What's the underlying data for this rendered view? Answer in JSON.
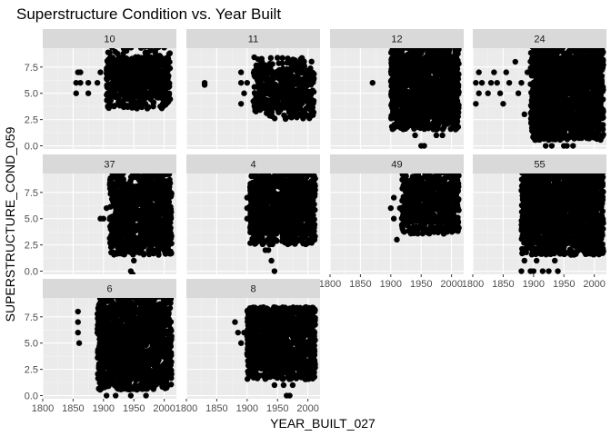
{
  "chart_data": {
    "type": "scatter",
    "title": "Superstructure Condition vs. Year Built",
    "xlabel": "YEAR_BUILT_027",
    "ylabel": "SUPERSTRUCTURE_COND_059",
    "xlim": [
      1800,
      2020
    ],
    "ylim": [
      -0.3,
      9.3
    ],
    "x_ticks": [
      1800,
      1850,
      1900,
      1950,
      2000
    ],
    "x_tick_labels": [
      "1800",
      "1850",
      "1900",
      "1950",
      "2000"
    ],
    "y_ticks": [
      0,
      2.5,
      5,
      7.5
    ],
    "y_tick_labels": [
      "0.0",
      "2.5",
      "5.0",
      "7.5"
    ],
    "grid": true,
    "legend": "none",
    "point_color": "#000000",
    "panel_background": "#ebebeb",
    "strip_background": "#d9d9d9",
    "panels": [
      {
        "label": "10",
        "points": [
          [
            1855,
            5
          ],
          [
            1855,
            6
          ],
          [
            1858,
            7
          ],
          [
            1862,
            6
          ],
          [
            1862,
            7
          ],
          [
            1875,
            5
          ],
          [
            1875,
            6
          ],
          [
            1890,
            6
          ],
          [
            1895,
            7
          ]
        ],
        "clouds": [
          {
            "x": [
              1905,
              2010
            ],
            "y": [
              4,
              8.7
            ],
            "density": 700
          }
        ]
      },
      {
        "label": "11",
        "points": [
          [
            1830,
            6
          ],
          [
            1830,
            5.8
          ],
          [
            1890,
            4
          ],
          [
            1890,
            6
          ],
          [
            1890,
            7
          ],
          [
            1895,
            5
          ],
          [
            1900,
            6
          ]
        ],
        "clouds": [
          {
            "x": [
              1910,
              2010
            ],
            "y": [
              3,
              8
            ],
            "density": 500
          }
        ]
      },
      {
        "label": "12",
        "points": [
          [
            1870,
            6
          ],
          [
            1905,
            6
          ],
          [
            1950,
            0
          ],
          [
            1955,
            0
          ],
          [
            1975,
            1
          ],
          [
            1985,
            1
          ],
          [
            1930,
            2
          ],
          [
            1940,
            1
          ]
        ],
        "clouds": [
          {
            "x": [
              1900,
              2012
            ],
            "y": [
              2,
              9
            ],
            "density": 1400
          }
        ]
      },
      {
        "label": "24",
        "points": [
          [
            1805,
            4
          ],
          [
            1805,
            6
          ],
          [
            1810,
            5
          ],
          [
            1810,
            7
          ],
          [
            1815,
            6
          ],
          [
            1825,
            5
          ],
          [
            1830,
            6
          ],
          [
            1835,
            7
          ],
          [
            1840,
            6
          ],
          [
            1845,
            5
          ],
          [
            1850,
            4
          ],
          [
            1855,
            7
          ],
          [
            1860,
            6
          ],
          [
            1870,
            8
          ],
          [
            1875,
            5
          ],
          [
            1880,
            6
          ],
          [
            1885,
            3
          ],
          [
            1890,
            7
          ],
          [
            1920,
            0
          ],
          [
            1925,
            1
          ],
          [
            1930,
            0
          ],
          [
            1950,
            0
          ],
          [
            1955,
            0
          ],
          [
            1965,
            0
          ],
          [
            1975,
            1
          ],
          [
            1985,
            1
          ]
        ],
        "clouds": [
          {
            "x": [
              1895,
              2015
            ],
            "y": [
              1,
              9
            ],
            "density": 1600
          }
        ]
      },
      {
        "label": "37",
        "points": [
          [
            1895,
            5
          ],
          [
            1900,
            5
          ],
          [
            1905,
            6
          ],
          [
            1912,
            4
          ],
          [
            1945,
            0
          ],
          [
            1950,
            1
          ],
          [
            1948,
            -0.3
          ]
        ],
        "clouds": [
          {
            "x": [
              1910,
              2012
            ],
            "y": [
              2,
              9
            ],
            "density": 1100
          }
        ]
      },
      {
        "label": "4",
        "points": [
          [
            1900,
            5
          ],
          [
            1900,
            6
          ],
          [
            1900,
            7
          ],
          [
            1945,
            0
          ],
          [
            1940,
            1
          ],
          [
            1935,
            2
          ],
          [
            1930,
            2
          ]
        ],
        "clouds": [
          {
            "x": [
              1905,
              2012
            ],
            "y": [
              3,
              9
            ],
            "density": 1000
          }
        ]
      },
      {
        "label": "49",
        "points": [
          [
            1900,
            6
          ],
          [
            1905,
            5
          ],
          [
            1905,
            7
          ],
          [
            1910,
            3
          ],
          [
            1915,
            6
          ]
        ],
        "clouds": [
          {
            "x": [
              1918,
              2012
            ],
            "y": [
              4,
              9
            ],
            "density": 800
          }
        ]
      },
      {
        "label": "55",
        "points": [
          [
            1880,
            0
          ],
          [
            1885,
            1
          ],
          [
            1895,
            0
          ],
          [
            1900,
            0
          ],
          [
            1905,
            1
          ],
          [
            1915,
            0
          ],
          [
            1925,
            0
          ],
          [
            1935,
            1
          ],
          [
            1940,
            0
          ]
        ],
        "clouds": [
          {
            "x": [
              1880,
              2015
            ],
            "y": [
              2,
              9.3
            ],
            "density": 1800
          }
        ]
      },
      {
        "label": "6",
        "points": [
          [
            1858,
            6
          ],
          [
            1858,
            7
          ],
          [
            1858,
            8
          ],
          [
            1860,
            5
          ],
          [
            1890,
            6
          ],
          [
            1895,
            7
          ],
          [
            1905,
            0
          ],
          [
            1920,
            0
          ],
          [
            1930,
            1
          ],
          [
            1945,
            0
          ],
          [
            1960,
            1
          ],
          [
            1970,
            0
          ]
        ],
        "clouds": [
          {
            "x": [
              1890,
              2012
            ],
            "y": [
              1,
              9
            ],
            "density": 1600
          }
        ]
      },
      {
        "label": "8",
        "points": [
          [
            1880,
            7
          ],
          [
            1885,
            6
          ],
          [
            1890,
            5
          ],
          [
            1895,
            6
          ],
          [
            1900,
            4
          ],
          [
            1965,
            0
          ],
          [
            1970,
            0
          ],
          [
            1975,
            1
          ],
          [
            1960,
            1
          ],
          [
            1955,
            2
          ],
          [
            1945,
            1
          ]
        ],
        "clouds": [
          {
            "x": [
              1900,
              2012
            ],
            "y": [
              2,
              8.5
            ],
            "density": 1200
          }
        ]
      }
    ]
  }
}
